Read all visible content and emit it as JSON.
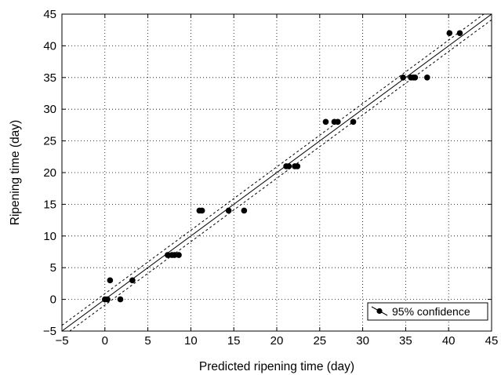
{
  "chart_data": {
    "type": "scatter",
    "title": "",
    "xlabel": "Predicted ripening time (day)",
    "ylabel": "Ripening time (day)",
    "xlim": [
      -5,
      45
    ],
    "ylim": [
      -5,
      45
    ],
    "xticks": [
      -5,
      0,
      5,
      10,
      15,
      20,
      25,
      30,
      35,
      40,
      45
    ],
    "yticks": [
      -5,
      0,
      5,
      10,
      15,
      20,
      25,
      30,
      35,
      40,
      45
    ],
    "grid": true,
    "grid_style": "dotted",
    "legend": {
      "position": "bottom-right",
      "label": "95% confidence"
    },
    "series": [
      {
        "kind": "points",
        "color": "#000000",
        "points": [
          {
            "x": 0.0,
            "y": 0
          },
          {
            "x": 0.3,
            "y": 0
          },
          {
            "x": 1.8,
            "y": 0
          },
          {
            "x": 0.6,
            "y": 3
          },
          {
            "x": 3.2,
            "y": 3
          },
          {
            "x": 7.3,
            "y": 7
          },
          {
            "x": 7.8,
            "y": 7
          },
          {
            "x": 8.1,
            "y": 7
          },
          {
            "x": 8.6,
            "y": 7
          },
          {
            "x": 11.0,
            "y": 14
          },
          {
            "x": 11.3,
            "y": 14
          },
          {
            "x": 14.4,
            "y": 14
          },
          {
            "x": 16.2,
            "y": 14
          },
          {
            "x": 21.1,
            "y": 21
          },
          {
            "x": 21.4,
            "y": 21
          },
          {
            "x": 22.1,
            "y": 21
          },
          {
            "x": 22.4,
            "y": 21
          },
          {
            "x": 25.7,
            "y": 28
          },
          {
            "x": 26.7,
            "y": 28
          },
          {
            "x": 27.1,
            "y": 28
          },
          {
            "x": 28.9,
            "y": 28
          },
          {
            "x": 34.7,
            "y": 35
          },
          {
            "x": 35.6,
            "y": 35
          },
          {
            "x": 35.9,
            "y": 35
          },
          {
            "x": 36.1,
            "y": 35
          },
          {
            "x": 37.5,
            "y": 35
          },
          {
            "x": 40.1,
            "y": 42
          },
          {
            "x": 41.3,
            "y": 42
          }
        ]
      },
      {
        "kind": "line",
        "style": "solid",
        "color": "#000000",
        "x": [
          -5,
          45
        ],
        "y": [
          -5,
          45
        ]
      },
      {
        "kind": "line",
        "style": "dashed",
        "color": "#000000",
        "x": [
          -5,
          45
        ],
        "y": [
          -4.1,
          45.9
        ]
      },
      {
        "kind": "line",
        "style": "dashed",
        "color": "#000000",
        "x": [
          -5,
          45
        ],
        "y": [
          -5.9,
          44.1
        ]
      }
    ]
  }
}
